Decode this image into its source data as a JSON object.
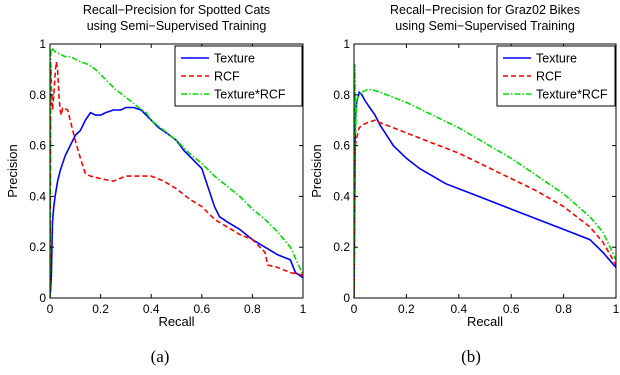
{
  "chart_data": [
    {
      "type": "line",
      "title": "Recall−Precision for Spotted Cats",
      "subtitle": "using Semi−Supervised Training",
      "xlabel": "Recall",
      "ylabel": "Precision",
      "xlim": [
        0,
        1
      ],
      "ylim": [
        0,
        1
      ],
      "xticks": [
        "0",
        "0.2",
        "0.4",
        "0.6",
        "0.8",
        "1"
      ],
      "yticks": [
        "0",
        "0.2",
        "0.4",
        "0.6",
        "0.8",
        "1"
      ],
      "grid": false,
      "legend_placement": "top-right",
      "caption": "(a)",
      "series": [
        {
          "name": "Texture",
          "color": "#0000ff",
          "dash": "solid",
          "x": [
            0.0,
            0.005,
            0.01,
            0.015,
            0.02,
            0.03,
            0.04,
            0.05,
            0.06,
            0.08,
            0.1,
            0.12,
            0.14,
            0.16,
            0.18,
            0.2,
            0.22,
            0.25,
            0.28,
            0.3,
            0.33,
            0.36,
            0.38,
            0.4,
            0.43,
            0.46,
            0.5,
            0.53,
            0.56,
            0.6,
            0.63,
            0.65,
            0.67,
            0.7,
            0.75,
            0.8,
            0.85,
            0.9,
            0.95,
            0.97,
            1.0
          ],
          "y": [
            0.0,
            0.08,
            0.3,
            0.36,
            0.4,
            0.46,
            0.5,
            0.53,
            0.56,
            0.6,
            0.64,
            0.66,
            0.7,
            0.73,
            0.72,
            0.72,
            0.73,
            0.74,
            0.74,
            0.75,
            0.75,
            0.74,
            0.72,
            0.7,
            0.67,
            0.65,
            0.62,
            0.58,
            0.55,
            0.51,
            0.42,
            0.36,
            0.32,
            0.3,
            0.27,
            0.23,
            0.2,
            0.17,
            0.15,
            0.1,
            0.08
          ]
        },
        {
          "name": "RCF",
          "color": "#ff0000",
          "dash": "5,3",
          "x": [
            0.0,
            0.003,
            0.006,
            0.01,
            0.015,
            0.02,
            0.025,
            0.03,
            0.035,
            0.04,
            0.045,
            0.05,
            0.07,
            0.08,
            0.1,
            0.12,
            0.14,
            0.16,
            0.2,
            0.25,
            0.3,
            0.35,
            0.4,
            0.45,
            0.5,
            0.55,
            0.6,
            0.65,
            0.7,
            0.75,
            0.8,
            0.83,
            0.85,
            0.86,
            0.9,
            0.95,
            1.0
          ],
          "y": [
            0.0,
            0.92,
            0.82,
            0.74,
            0.8,
            0.88,
            0.93,
            0.9,
            0.8,
            0.74,
            0.72,
            0.75,
            0.74,
            0.7,
            0.62,
            0.55,
            0.49,
            0.48,
            0.47,
            0.46,
            0.48,
            0.48,
            0.48,
            0.46,
            0.43,
            0.39,
            0.36,
            0.31,
            0.28,
            0.25,
            0.23,
            0.2,
            0.18,
            0.13,
            0.12,
            0.1,
            0.09
          ]
        },
        {
          "name": "Texture*RCF",
          "color": "#00dd00",
          "dash": "6,2,1.5,2",
          "x": [
            0.0,
            0.003,
            0.006,
            0.01,
            0.02,
            0.04,
            0.06,
            0.08,
            0.1,
            0.12,
            0.15,
            0.18,
            0.2,
            0.23,
            0.26,
            0.3,
            0.35,
            0.38,
            0.4,
            0.45,
            0.5,
            0.55,
            0.6,
            0.65,
            0.7,
            0.75,
            0.8,
            0.85,
            0.9,
            0.95,
            1.0
          ],
          "y": [
            0.0,
            0.98,
            0.97,
            0.98,
            0.97,
            0.96,
            0.95,
            0.95,
            0.94,
            0.93,
            0.92,
            0.9,
            0.88,
            0.85,
            0.82,
            0.79,
            0.75,
            0.73,
            0.7,
            0.66,
            0.62,
            0.57,
            0.53,
            0.48,
            0.44,
            0.4,
            0.35,
            0.31,
            0.26,
            0.2,
            0.09
          ]
        }
      ]
    },
    {
      "type": "line",
      "title": "Recall−Precision for Graz02 Bikes",
      "subtitle": "using Semi−Supervised Training",
      "xlabel": "Recall",
      "ylabel": "Precision",
      "xlim": [
        0,
        1
      ],
      "ylim": [
        0,
        1
      ],
      "xticks": [
        "0",
        "0.2",
        "0.4",
        "0.6",
        "0.8",
        "1"
      ],
      "yticks": [
        "0",
        "0.2",
        "0.4",
        "0.6",
        "0.8",
        "1"
      ],
      "grid": false,
      "legend_placement": "top-right",
      "caption": "(b)",
      "series": [
        {
          "name": "Texture",
          "color": "#0000ff",
          "dash": "solid",
          "x": [
            0.0,
            0.005,
            0.01,
            0.02,
            0.03,
            0.04,
            0.06,
            0.08,
            0.1,
            0.15,
            0.2,
            0.25,
            0.3,
            0.35,
            0.4,
            0.5,
            0.6,
            0.7,
            0.8,
            0.9,
            0.95,
            1.0
          ],
          "y": [
            0.0,
            0.7,
            0.77,
            0.81,
            0.8,
            0.78,
            0.75,
            0.72,
            0.68,
            0.6,
            0.55,
            0.51,
            0.48,
            0.45,
            0.43,
            0.39,
            0.35,
            0.31,
            0.27,
            0.23,
            0.18,
            0.12
          ]
        },
        {
          "name": "RCF",
          "color": "#ff0000",
          "dash": "5,3",
          "x": [
            0.0,
            0.005,
            0.01,
            0.02,
            0.03,
            0.05,
            0.08,
            0.1,
            0.15,
            0.2,
            0.3,
            0.4,
            0.5,
            0.6,
            0.7,
            0.8,
            0.9,
            0.95,
            1.0
          ],
          "y": [
            0.0,
            0.6,
            0.63,
            0.67,
            0.68,
            0.69,
            0.7,
            0.69,
            0.67,
            0.65,
            0.61,
            0.57,
            0.52,
            0.47,
            0.42,
            0.36,
            0.28,
            0.22,
            0.13
          ]
        },
        {
          "name": "Texture*RCF",
          "color": "#00dd00",
          "dash": "6,2,1.5,2",
          "x": [
            0.0,
            0.003,
            0.006,
            0.01,
            0.02,
            0.03,
            0.05,
            0.07,
            0.1,
            0.15,
            0.2,
            0.3,
            0.4,
            0.5,
            0.6,
            0.7,
            0.8,
            0.9,
            0.95,
            1.0
          ],
          "y": [
            0.0,
            0.92,
            0.65,
            0.78,
            0.8,
            0.81,
            0.82,
            0.82,
            0.81,
            0.79,
            0.77,
            0.72,
            0.67,
            0.61,
            0.55,
            0.48,
            0.41,
            0.32,
            0.26,
            0.15
          ]
        }
      ]
    }
  ]
}
